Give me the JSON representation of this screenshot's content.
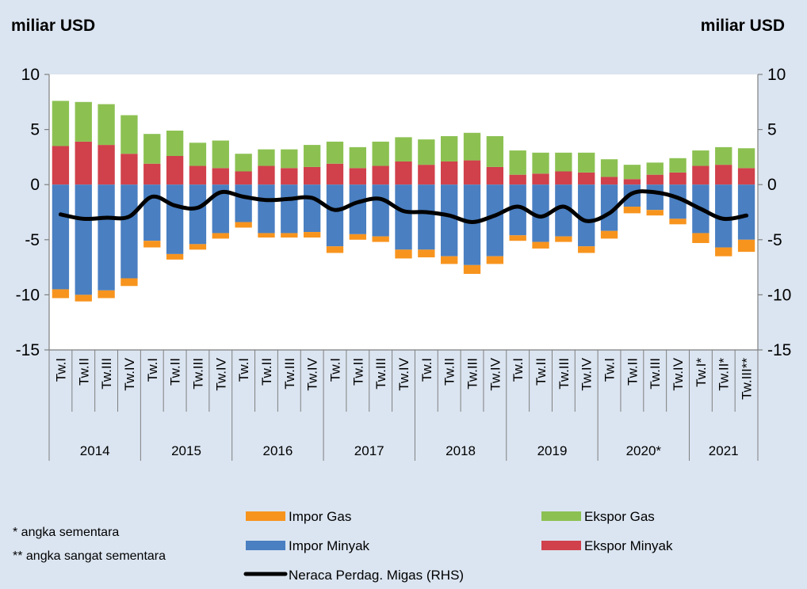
{
  "chart_data": {
    "type": "bar",
    "left_unit": "miliar USD",
    "right_unit": "miliar USD",
    "ylim": [
      -15,
      10
    ],
    "ylim_right": [
      -15,
      10
    ],
    "yticks": [
      10,
      5,
      0,
      -5,
      -10,
      -15
    ],
    "ytick_labels": [
      "10",
      "5",
      "0",
      "-5",
      "-10",
      "-15"
    ],
    "ytick_labels_right": [
      "10",
      "5",
      "0",
      "-5",
      "-10",
      "-15"
    ],
    "categories": [
      "Tw.I",
      "Tw.II",
      "Tw.III",
      "Tw.IV",
      "Tw.I",
      "Tw.II",
      "Tw.III",
      "Tw.IV",
      "Tw.I",
      "Tw.II",
      "Tw.III",
      "Tw.IV",
      "Tw.I",
      "Tw.II",
      "Tw.III",
      "Tw.IV",
      "Tw.I",
      "Tw.II",
      "Tw.III",
      "Tw.IV",
      "Tw.I",
      "Tw.II",
      "Tw.III",
      "Tw.IV",
      "Tw.I",
      "Tw.II",
      "Tw.III",
      "Tw.IV",
      "Tw.I*",
      "Tw.II*",
      "Tw.III**"
    ],
    "years": [
      {
        "label": "2014",
        "count": 4
      },
      {
        "label": "2015",
        "count": 4
      },
      {
        "label": "2016",
        "count": 4
      },
      {
        "label": "2017",
        "count": 4
      },
      {
        "label": "2018",
        "count": 4
      },
      {
        "label": "2019",
        "count": 4
      },
      {
        "label": "2020*",
        "count": 4
      },
      {
        "label": "2021",
        "count": 3
      }
    ],
    "series": [
      {
        "name": "Ekspor Minyak",
        "color": "#d0414b",
        "stack": "positive",
        "values": [
          3.5,
          3.9,
          3.6,
          2.8,
          1.9,
          2.6,
          1.7,
          1.5,
          1.2,
          1.7,
          1.5,
          1.6,
          1.9,
          1.5,
          1.7,
          2.1,
          1.8,
          2.1,
          2.2,
          1.6,
          0.9,
          1.0,
          1.2,
          1.1,
          0.7,
          0.5,
          0.9,
          1.1,
          1.7,
          1.8,
          1.5
        ]
      },
      {
        "name": "Ekspor Gas",
        "color": "#8cc152",
        "stack": "positive",
        "values": [
          4.1,
          3.6,
          3.7,
          3.5,
          2.7,
          2.3,
          2.1,
          2.5,
          1.6,
          1.5,
          1.7,
          2.0,
          2.0,
          1.9,
          2.2,
          2.2,
          2.3,
          2.3,
          2.5,
          2.8,
          2.2,
          1.9,
          1.7,
          1.8,
          1.6,
          1.3,
          1.1,
          1.3,
          1.4,
          1.6,
          1.8
        ]
      },
      {
        "name": "Impor Minyak",
        "color": "#4a7fc1",
        "stack": "negative",
        "values": [
          -9.5,
          -10.0,
          -9.6,
          -8.5,
          -5.1,
          -6.3,
          -5.4,
          -4.4,
          -3.4,
          -4.4,
          -4.4,
          -4.3,
          -5.6,
          -4.5,
          -4.7,
          -5.9,
          -5.9,
          -6.5,
          -7.3,
          -6.5,
          -4.6,
          -5.2,
          -4.7,
          -5.6,
          -4.2,
          -2.0,
          -2.3,
          -3.1,
          -4.4,
          -5.7,
          -5.0
        ]
      },
      {
        "name": "Impor Gas",
        "color": "#f7941e",
        "stack": "negative",
        "values": [
          -0.8,
          -0.6,
          -0.7,
          -0.7,
          -0.6,
          -0.5,
          -0.5,
          -0.5,
          -0.5,
          -0.4,
          -0.4,
          -0.5,
          -0.6,
          -0.5,
          -0.5,
          -0.8,
          -0.7,
          -0.7,
          -0.8,
          -0.7,
          -0.5,
          -0.6,
          -0.5,
          -0.6,
          -0.7,
          -0.6,
          -0.5,
          -0.5,
          -0.9,
          -0.8,
          -1.1
        ]
      },
      {
        "name": "Neraca Perdag. Migas (RHS)",
        "color": "#000000",
        "type": "line",
        "values": [
          -2.7,
          -3.1,
          -3.0,
          -2.9,
          -1.1,
          -1.9,
          -2.1,
          -0.7,
          -1.1,
          -1.4,
          -1.3,
          -1.2,
          -2.3,
          -1.6,
          -1.3,
          -2.4,
          -2.5,
          -2.8,
          -3.4,
          -2.8,
          -2.0,
          -2.9,
          -2.0,
          -3.3,
          -2.6,
          -0.8,
          -0.7,
          -1.2,
          -2.2,
          -3.1,
          -2.8
        ]
      }
    ],
    "legend": [
      {
        "label": "Impor Gas",
        "color": "#f7941e",
        "kind": "box"
      },
      {
        "label": "Ekspor Gas",
        "color": "#8cc152",
        "kind": "box"
      },
      {
        "label": "Impor Minyak",
        "color": "#4a7fc1",
        "kind": "box"
      },
      {
        "label": "Ekspor Minyak",
        "color": "#d0414b",
        "kind": "box"
      },
      {
        "label": "Neraca Perdag. Migas (RHS)",
        "color": "#000000",
        "kind": "line"
      }
    ],
    "notes": [
      "* angka sementara",
      "** angka sangat sementara"
    ],
    "grid": false,
    "legend_position": "bottom"
  }
}
